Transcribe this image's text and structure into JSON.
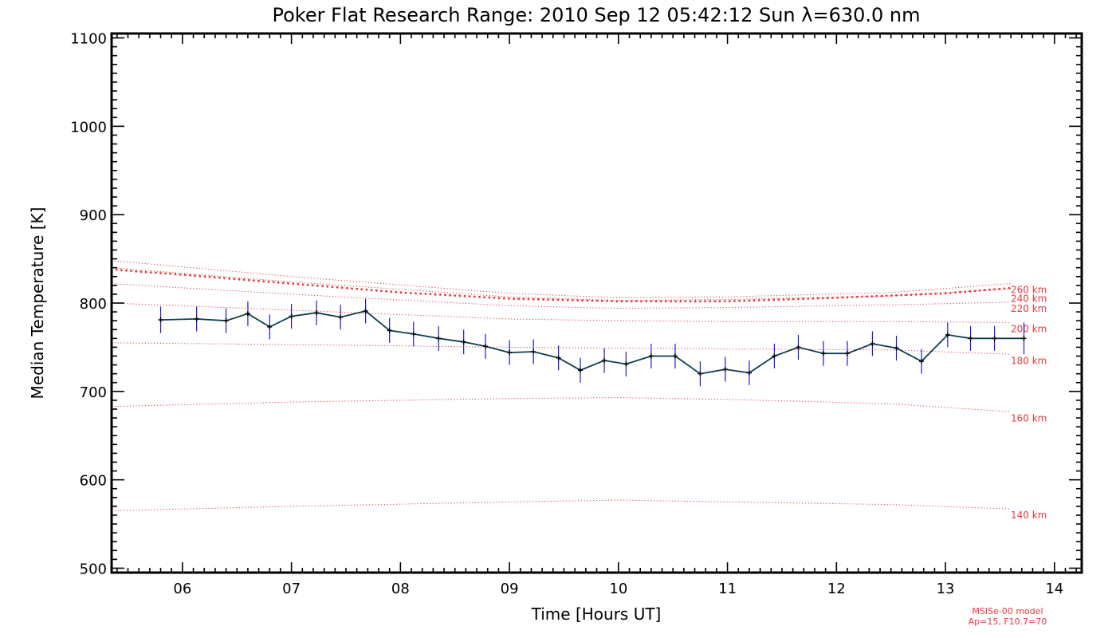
{
  "chart_data": {
    "type": "line",
    "title": "Poker Flat Research Range: 2010 Sep 12 05:42:12 Sun λ=630.0 nm",
    "xlabel": "Time [Hours UT]",
    "ylabel": "Median Temperature [K]",
    "xlim": [
      5.35,
      14.25
    ],
    "ylim": [
      495,
      1105
    ],
    "x_ticks": [
      6,
      7,
      8,
      9,
      10,
      11,
      12,
      13,
      14
    ],
    "x_tick_labels": [
      "06",
      "07",
      "08",
      "09",
      "10",
      "11",
      "12",
      "13",
      "14"
    ],
    "y_ticks": [
      500,
      600,
      700,
      800,
      900,
      1000,
      1100
    ],
    "y_tick_labels": [
      "500",
      "600",
      "700",
      "800",
      "900",
      "1000",
      "1100"
    ],
    "grid": false,
    "colors": {
      "series_line": "#0d3d52",
      "error_bars": "#1a1adc",
      "model": "#e8383d"
    },
    "series": [
      {
        "x": [
          5.8,
          6.13,
          6.4,
          6.6,
          6.8,
          7.0,
          7.23,
          7.45,
          7.68,
          7.9,
          8.12,
          8.35,
          8.58,
          8.78,
          9.0,
          9.22,
          9.45,
          9.65,
          9.87,
          10.07,
          10.3,
          10.52,
          10.75,
          10.98,
          11.2,
          11.43,
          11.65,
          11.88,
          12.1,
          12.33,
          12.55,
          12.78,
          13.02,
          13.23,
          13.45,
          13.72
        ],
        "y": [
          781,
          782,
          780,
          788,
          773,
          785,
          789,
          784,
          791,
          769,
          765,
          760,
          756,
          751,
          744,
          745,
          738,
          724,
          735,
          731,
          740,
          740,
          720,
          725,
          721,
          740,
          750,
          743,
          743,
          754,
          749,
          734,
          764,
          760,
          760,
          760
        ],
        "error": [
          15,
          14,
          14,
          14,
          14,
          14,
          14,
          14,
          14,
          14,
          14,
          14,
          14,
          14,
          14,
          14,
          14,
          14,
          14,
          14,
          14,
          14,
          14,
          14,
          14,
          14,
          14,
          14,
          14,
          14,
          14,
          14,
          14,
          14,
          14,
          18
        ]
      }
    ],
    "model_curves": [
      {
        "label": "140 km",
        "x": [
          5.35,
          7.0,
          9.0,
          10.0,
          11.0,
          12.5,
          13.6
        ],
        "y": [
          565,
          570,
          575,
          577,
          575,
          572,
          567
        ]
      },
      {
        "label": "160 km",
        "x": [
          5.35,
          7.0,
          9.0,
          10.0,
          11.0,
          12.5,
          13.6
        ],
        "y": [
          683,
          688,
          692,
          693,
          691,
          686,
          677
        ]
      },
      {
        "label": "180 km",
        "x": [
          5.35,
          7.0,
          9.0,
          10.0,
          11.0,
          12.5,
          13.6
        ],
        "y": [
          755,
          753,
          750,
          749,
          748,
          747,
          742
        ]
      },
      {
        "label": "200 km",
        "x": [
          5.35,
          7.0,
          9.0,
          10.0,
          11.0,
          12.5,
          13.6
        ],
        "y": [
          800,
          792,
          782,
          780,
          779,
          779,
          778
        ]
      },
      {
        "label": "220 km",
        "x": [
          5.35,
          7.0,
          9.0,
          10.0,
          11.0,
          12.5,
          13.6
        ],
        "y": [
          822,
          810,
          797,
          794,
          795,
          798,
          801
        ]
      },
      {
        "label": "240 km",
        "x": [
          5.35,
          7.0,
          9.0,
          10.0,
          11.0,
          12.5,
          13.6
        ],
        "y": [
          840,
          824,
          807,
          803,
          804,
          808,
          816
        ]
      },
      {
        "label": "260 km",
        "x": [
          5.35,
          7.0,
          9.0,
          10.0,
          11.0,
          12.5,
          13.6
        ],
        "y": [
          848,
          830,
          811,
          806,
          807,
          812,
          822
        ]
      }
    ],
    "model_highlight": {
      "x": [
        5.35,
        6.0,
        7.0,
        8.0,
        9.0,
        10.0,
        11.0,
        12.0,
        13.0,
        13.6
      ],
      "y": [
        838,
        832,
        822,
        812,
        805,
        802,
        802,
        806,
        811,
        817
      ]
    },
    "notes": [
      "MSISe-00 model",
      "Ap=15, F10.7=70"
    ]
  }
}
